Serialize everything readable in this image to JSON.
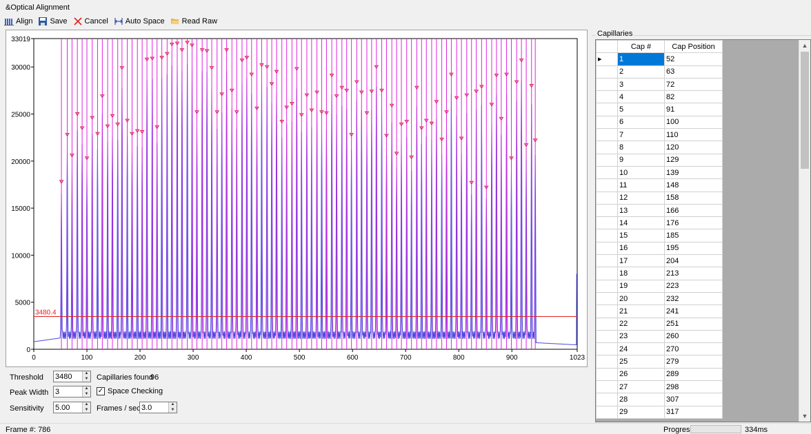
{
  "window": {
    "title": "&Optical Alignment"
  },
  "toolbar": {
    "align_label": "Align",
    "save_label": "Save",
    "cancel_label": "Cancel",
    "autospace_label": "Auto Space",
    "readraw_label": "Read Raw"
  },
  "controls": {
    "threshold_label": "Threshold",
    "threshold_value": "3480",
    "capillaries_found_label": "Capillaries found",
    "capillaries_found_value": "96",
    "peak_width_label": "Peak Width",
    "peak_width_value": "3",
    "space_checking_label": "Space Checking",
    "space_checking_checked": true,
    "sensitivity_label": "Sensitivity",
    "sensitivity_value": "5.00",
    "fps_label": "Frames / sec",
    "fps_value": "3.0"
  },
  "capillaries": {
    "group_label": "Capillaries",
    "col_cap": "Cap #",
    "col_pos": "Cap Position",
    "rows": [
      [
        "1",
        "52"
      ],
      [
        "2",
        "63"
      ],
      [
        "3",
        "72"
      ],
      [
        "4",
        "82"
      ],
      [
        "5",
        "91"
      ],
      [
        "6",
        "100"
      ],
      [
        "7",
        "110"
      ],
      [
        "8",
        "120"
      ],
      [
        "9",
        "129"
      ],
      [
        "10",
        "139"
      ],
      [
        "11",
        "148"
      ],
      [
        "12",
        "158"
      ],
      [
        "13",
        "166"
      ],
      [
        "14",
        "176"
      ],
      [
        "15",
        "185"
      ],
      [
        "16",
        "195"
      ],
      [
        "17",
        "204"
      ],
      [
        "18",
        "213"
      ],
      [
        "19",
        "223"
      ],
      [
        "20",
        "232"
      ],
      [
        "21",
        "241"
      ],
      [
        "22",
        "251"
      ],
      [
        "23",
        "260"
      ],
      [
        "24",
        "270"
      ],
      [
        "25",
        "279"
      ],
      [
        "26",
        "289"
      ],
      [
        "27",
        "298"
      ],
      [
        "28",
        "307"
      ],
      [
        "29",
        "317"
      ]
    ]
  },
  "status": {
    "frame_text": "Frame #: 786",
    "progress_label": "Progress",
    "progress_fraction": 0,
    "elapsed": "334ms"
  },
  "colors": {
    "signal": "#4a4ae0",
    "marker_line": "#e020e0",
    "threshold": "#e02020",
    "peak_marker": "#e0205a"
  },
  "chart_data": {
    "type": "line",
    "xlim": [
      0,
      1023
    ],
    "ylim": [
      0,
      33019
    ],
    "x_ticks": [
      0,
      100,
      200,
      300,
      400,
      500,
      600,
      700,
      800,
      900,
      1023
    ],
    "y_ticks": [
      0,
      5000,
      10000,
      15000,
      20000,
      25000,
      30000,
      33019
    ],
    "threshold": 3480.4,
    "threshold_label": "3480.4",
    "signal_start": 50,
    "signal_end": 945,
    "baseline_left": 800,
    "baseline_right": 700,
    "end_spike": 8000,
    "capillary_positions": [
      52,
      63,
      72,
      82,
      91,
      100,
      110,
      120,
      129,
      139,
      148,
      158,
      166,
      176,
      185,
      195,
      204,
      213,
      223,
      232,
      241,
      251,
      260,
      270,
      279,
      289,
      298,
      307,
      317,
      326,
      335,
      345,
      354,
      363,
      373,
      382,
      392,
      401,
      410,
      420,
      429,
      439,
      448,
      457,
      467,
      476,
      486,
      495,
      504,
      514,
      523,
      533,
      542,
      551,
      561,
      570,
      580,
      589,
      598,
      608,
      617,
      627,
      636,
      645,
      655,
      664,
      674,
      683,
      692,
      702,
      711,
      721,
      730,
      739,
      749,
      758,
      768,
      777,
      786,
      796,
      805,
      815,
      824,
      833,
      843,
      852,
      862,
      871,
      880,
      890,
      899,
      909,
      918,
      927,
      937,
      944
    ],
    "peak_heights": [
      17800,
      22800,
      20600,
      25000,
      23500,
      20300,
      24600,
      22900,
      26900,
      23700,
      24800,
      23900,
      29900,
      24300,
      22900,
      23200,
      23100,
      30800,
      30900,
      23600,
      31000,
      31400,
      32400,
      32500,
      31800,
      32600,
      32300,
      25200,
      31800,
      31700,
      29900,
      25200,
      27100,
      31800,
      27500,
      25200,
      30700,
      31000,
      29200,
      25600,
      30200,
      30000,
      28200,
      29500,
      24200,
      25700,
      26100,
      29800,
      24900,
      27000,
      25400,
      27300,
      25200,
      25100,
      29100,
      26900,
      27800,
      27500,
      22800,
      28400,
      27300,
      25100,
      27400,
      30000,
      27500,
      22700,
      25900,
      20800,
      23900,
      24200,
      20400,
      27800,
      23500,
      24300,
      24000,
      26300,
      22300,
      25200,
      29200,
      26700,
      22400,
      27000,
      17700,
      27400,
      27900,
      17200,
      26000,
      29100,
      24500,
      29200,
      20300,
      28400,
      30700,
      21700,
      28000,
      22200
    ],
    "markers": [
      [
        52,
        17800
      ],
      [
        63,
        22800
      ],
      [
        72,
        20600
      ],
      [
        82,
        25000
      ],
      [
        91,
        23500
      ],
      [
        100,
        20300
      ],
      [
        110,
        24600
      ],
      [
        120,
        22900
      ],
      [
        129,
        26900
      ],
      [
        139,
        23700
      ],
      [
        148,
        24800
      ],
      [
        158,
        23900
      ],
      [
        166,
        29900
      ],
      [
        176,
        24300
      ],
      [
        185,
        22900
      ],
      [
        195,
        23200
      ],
      [
        204,
        23100
      ],
      [
        213,
        30800
      ],
      [
        223,
        30900
      ],
      [
        232,
        23600
      ],
      [
        241,
        31000
      ],
      [
        251,
        31400
      ],
      [
        260,
        32400
      ],
      [
        270,
        32500
      ],
      [
        279,
        31800
      ],
      [
        289,
        32600
      ],
      [
        298,
        32300
      ],
      [
        307,
        25200
      ],
      [
        317,
        31800
      ],
      [
        326,
        31700
      ],
      [
        335,
        29900
      ],
      [
        345,
        25200
      ],
      [
        354,
        27100
      ],
      [
        363,
        31800
      ],
      [
        373,
        27500
      ],
      [
        382,
        25200
      ],
      [
        392,
        30700
      ],
      [
        401,
        31000
      ],
      [
        410,
        29200
      ],
      [
        420,
        25600
      ],
      [
        429,
        30200
      ],
      [
        439,
        30000
      ],
      [
        448,
        28200
      ],
      [
        457,
        29500
      ],
      [
        467,
        24200
      ],
      [
        476,
        25700
      ],
      [
        486,
        26100
      ],
      [
        495,
        29800
      ],
      [
        504,
        24900
      ],
      [
        514,
        27000
      ],
      [
        523,
        25400
      ],
      [
        533,
        27300
      ],
      [
        542,
        25200
      ],
      [
        551,
        25100
      ],
      [
        561,
        29100
      ],
      [
        570,
        26900
      ],
      [
        580,
        27800
      ],
      [
        589,
        27500
      ],
      [
        598,
        22800
      ],
      [
        608,
        28400
      ],
      [
        617,
        27300
      ],
      [
        627,
        25100
      ],
      [
        636,
        27400
      ],
      [
        645,
        30000
      ],
      [
        655,
        27500
      ],
      [
        664,
        22700
      ],
      [
        674,
        25900
      ],
      [
        683,
        20800
      ],
      [
        692,
        23900
      ],
      [
        702,
        24200
      ],
      [
        711,
        20400
      ],
      [
        721,
        27800
      ],
      [
        730,
        23500
      ],
      [
        739,
        24300
      ],
      [
        749,
        24000
      ],
      [
        758,
        26300
      ],
      [
        768,
        22300
      ],
      [
        777,
        25200
      ],
      [
        786,
        29200
      ],
      [
        796,
        26700
      ],
      [
        805,
        22400
      ],
      [
        815,
        27000
      ],
      [
        824,
        17700
      ],
      [
        833,
        27400
      ],
      [
        843,
        27900
      ],
      [
        852,
        17200
      ],
      [
        862,
        26000
      ],
      [
        871,
        29100
      ],
      [
        880,
        24500
      ],
      [
        890,
        29200
      ],
      [
        899,
        20300
      ],
      [
        909,
        28400
      ],
      [
        918,
        30700
      ],
      [
        927,
        21700
      ],
      [
        937,
        28000
      ],
      [
        944,
        22200
      ]
    ]
  }
}
